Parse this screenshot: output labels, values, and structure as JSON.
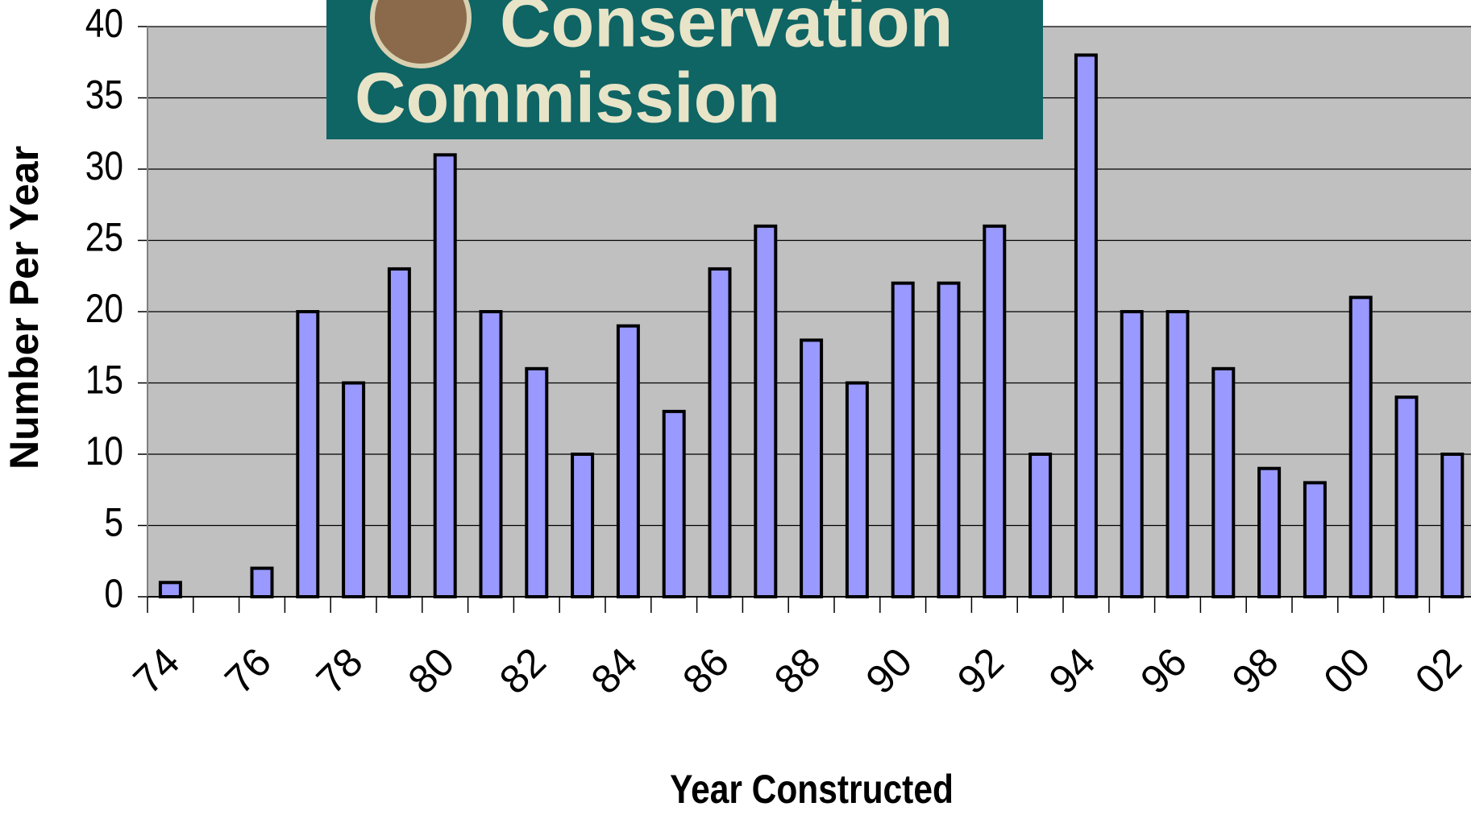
{
  "banner": {
    "line1": "Conservation",
    "line2": "Commission"
  },
  "chart_data": {
    "type": "bar",
    "xlabel": "Year Constructed",
    "ylabel": "Number Per Year",
    "categories": [
      "74",
      null,
      "76",
      null,
      "78",
      null,
      "80",
      null,
      "82",
      null,
      "84",
      null,
      "86",
      null,
      "88",
      null,
      "90",
      null,
      "92",
      null,
      "94",
      null,
      "96",
      null,
      "98",
      null,
      "00",
      null,
      "02"
    ],
    "values": [
      1,
      0,
      2,
      20,
      15,
      23,
      31,
      20,
      16,
      10,
      19,
      13,
      23,
      26,
      18,
      15,
      22,
      22,
      26,
      10,
      38,
      20,
      20,
      16,
      9,
      8,
      21,
      14,
      10
    ],
    "color": "#9999ff",
    "ylim": [
      0,
      40
    ],
    "yticks": [
      0,
      5,
      10,
      15,
      20,
      25,
      30,
      35,
      40
    ],
    "grid": true
  }
}
